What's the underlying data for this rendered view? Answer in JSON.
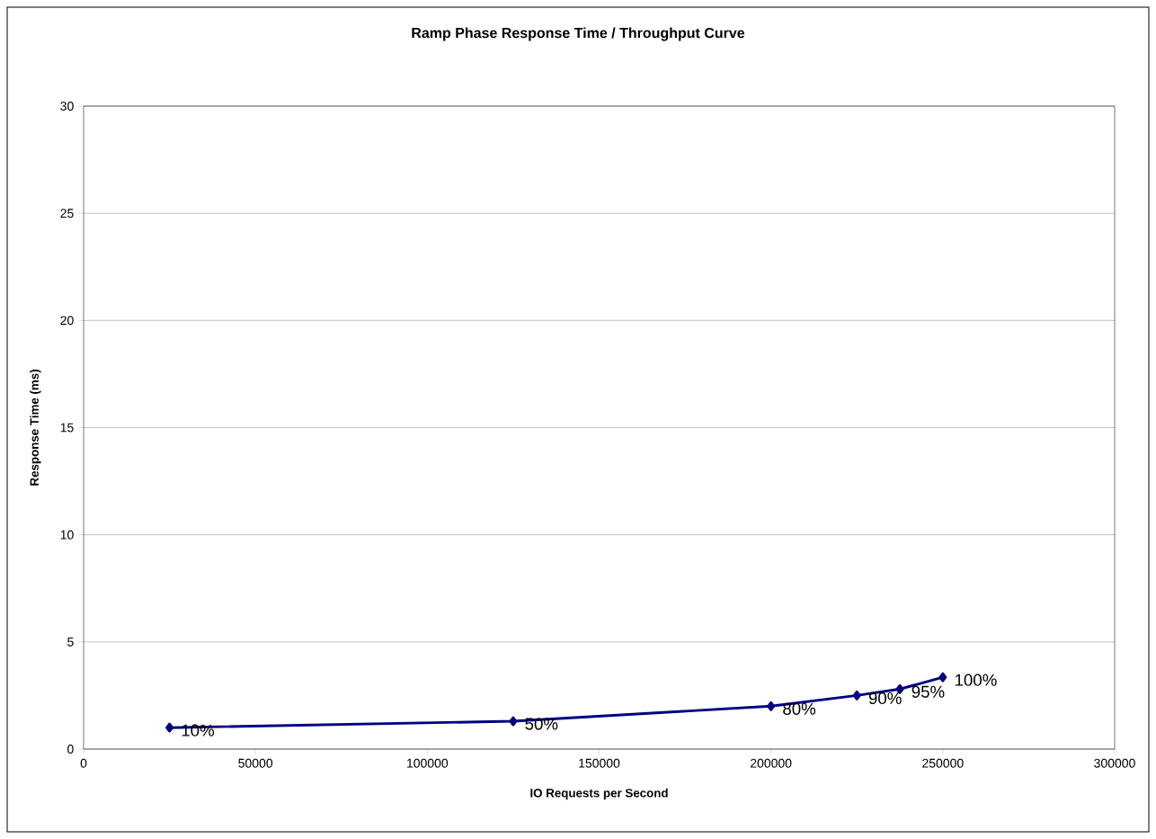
{
  "chart_data": {
    "type": "line",
    "title": "Ramp Phase Response Time / Throughput Curve",
    "xlabel": "IO Requests per Second",
    "ylabel": "Response Time (ms)",
    "x": [
      25000,
      125000,
      200000,
      225000,
      237500,
      250000
    ],
    "series": [
      {
        "color": "#000080",
        "values": [
          1.0,
          1.3,
          2.0,
          2.5,
          2.8,
          3.35
        ]
      }
    ],
    "xlim": [
      0,
      300000
    ],
    "xticks": [
      0,
      50000,
      100000,
      150000,
      200000,
      250000,
      300000
    ],
    "ylim": [
      0,
      30
    ],
    "yticks": [
      0,
      5,
      10,
      15,
      20,
      25,
      30
    ],
    "grid": "y",
    "marker": "diamond",
    "line_style": "solid",
    "annotations": [
      {
        "text": "10%",
        "x": 25000,
        "y": 1.0
      },
      {
        "text": "50%",
        "x": 125000,
        "y": 1.3
      },
      {
        "text": "80%",
        "x": 200000,
        "y": 2.0
      },
      {
        "text": "90%",
        "x": 225000,
        "y": 2.5
      },
      {
        "text": "95%",
        "x": 237500,
        "y": 2.8
      },
      {
        "text": "100%",
        "x": 250000,
        "y": 3.35
      }
    ]
  }
}
